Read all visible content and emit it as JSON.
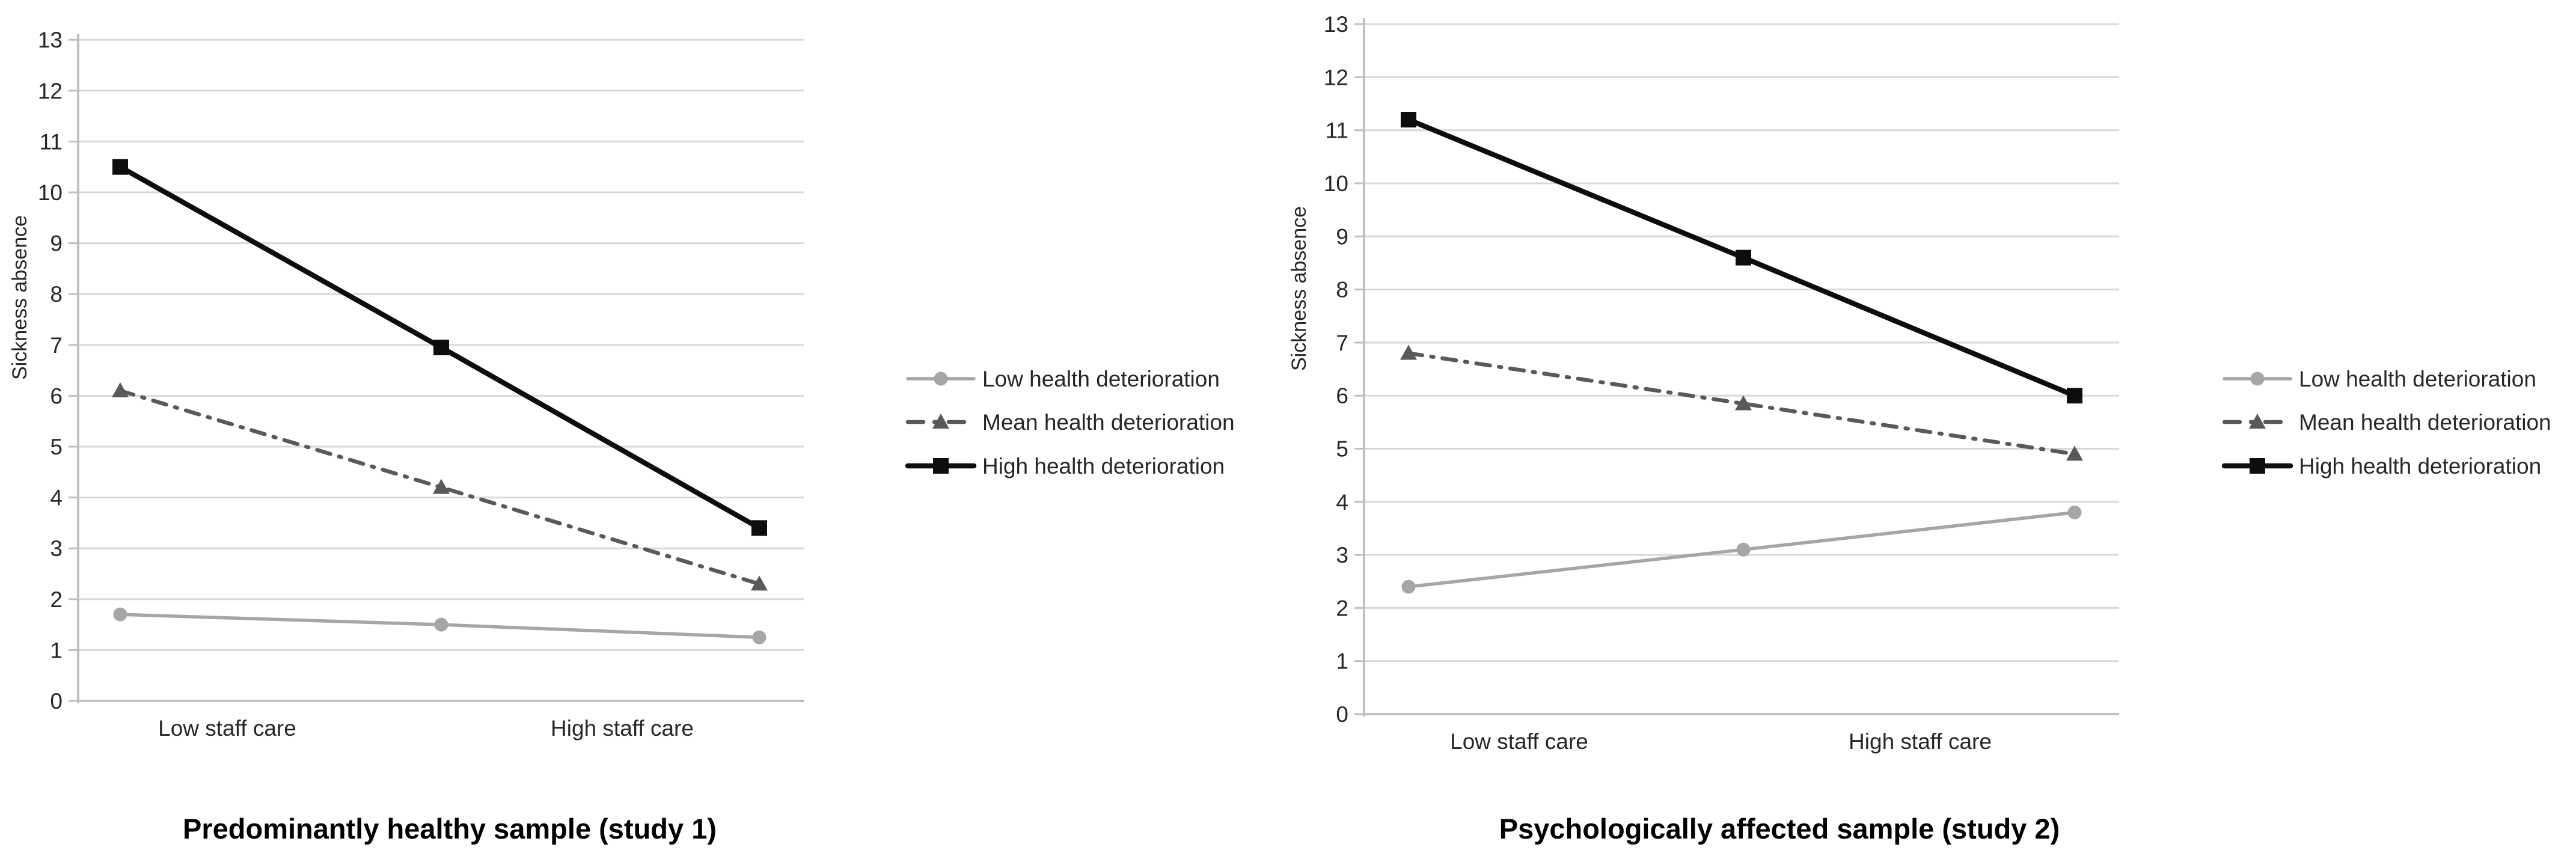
{
  "figure": {
    "background": "#ffffff",
    "description": "Two interaction line plots of sickness absence by staff care level and health deterioration"
  },
  "style": {
    "gridline_color": "#d9d9d9",
    "axis_color": "#bfbfbf",
    "tick_text_color": "#262626",
    "title_color": "#000000"
  },
  "chart_data": [
    {
      "type": "line",
      "title": "Predominantly healthy sample (study 1)",
      "ylabel": "Sickness absence",
      "xlabel": "",
      "categories": [
        "Low staff care",
        "High staff care"
      ],
      "x_points_per_series": 3,
      "ylim": [
        0,
        13
      ],
      "ytick_step": 1,
      "yticks": [
        0,
        1,
        2,
        3,
        4,
        5,
        6,
        7,
        8,
        9,
        10,
        11,
        12,
        13
      ],
      "grid": true,
      "legend_position": "right",
      "series": [
        {
          "name": "Low health deterioration",
          "marker": "circle",
          "line_style": "solid",
          "color": "#a6a6a6",
          "values": [
            1.7,
            1.5,
            1.25
          ]
        },
        {
          "name": "Mean health deterioration",
          "marker": "triangle",
          "line_style": "dashdot",
          "color": "#595959",
          "values": [
            6.1,
            4.2,
            2.3
          ]
        },
        {
          "name": "High health deterioration",
          "marker": "square",
          "line_style": "solid",
          "color": "#0d0d0d",
          "values": [
            10.5,
            6.95,
            3.4
          ]
        }
      ]
    },
    {
      "type": "line",
      "title": "Psychologically affected sample (study 2)",
      "ylabel": "Sickness absence",
      "xlabel": "",
      "categories": [
        "Low staff care",
        "High staff care"
      ],
      "x_points_per_series": 3,
      "ylim": [
        0,
        13
      ],
      "ytick_step": 1,
      "yticks": [
        0,
        1,
        2,
        3,
        4,
        5,
        6,
        7,
        8,
        9,
        10,
        11,
        12,
        13
      ],
      "grid": true,
      "legend_position": "right",
      "series": [
        {
          "name": "Low health deterioration",
          "marker": "circle",
          "line_style": "solid",
          "color": "#a6a6a6",
          "values": [
            2.4,
            3.1,
            3.8
          ]
        },
        {
          "name": "Mean health deterioration",
          "marker": "triangle",
          "line_style": "dashdot",
          "color": "#595959",
          "values": [
            6.8,
            5.85,
            4.9
          ]
        },
        {
          "name": "High health deterioration",
          "marker": "square",
          "line_style": "solid",
          "color": "#0d0d0d",
          "values": [
            11.2,
            8.6,
            6.0
          ]
        }
      ]
    }
  ]
}
